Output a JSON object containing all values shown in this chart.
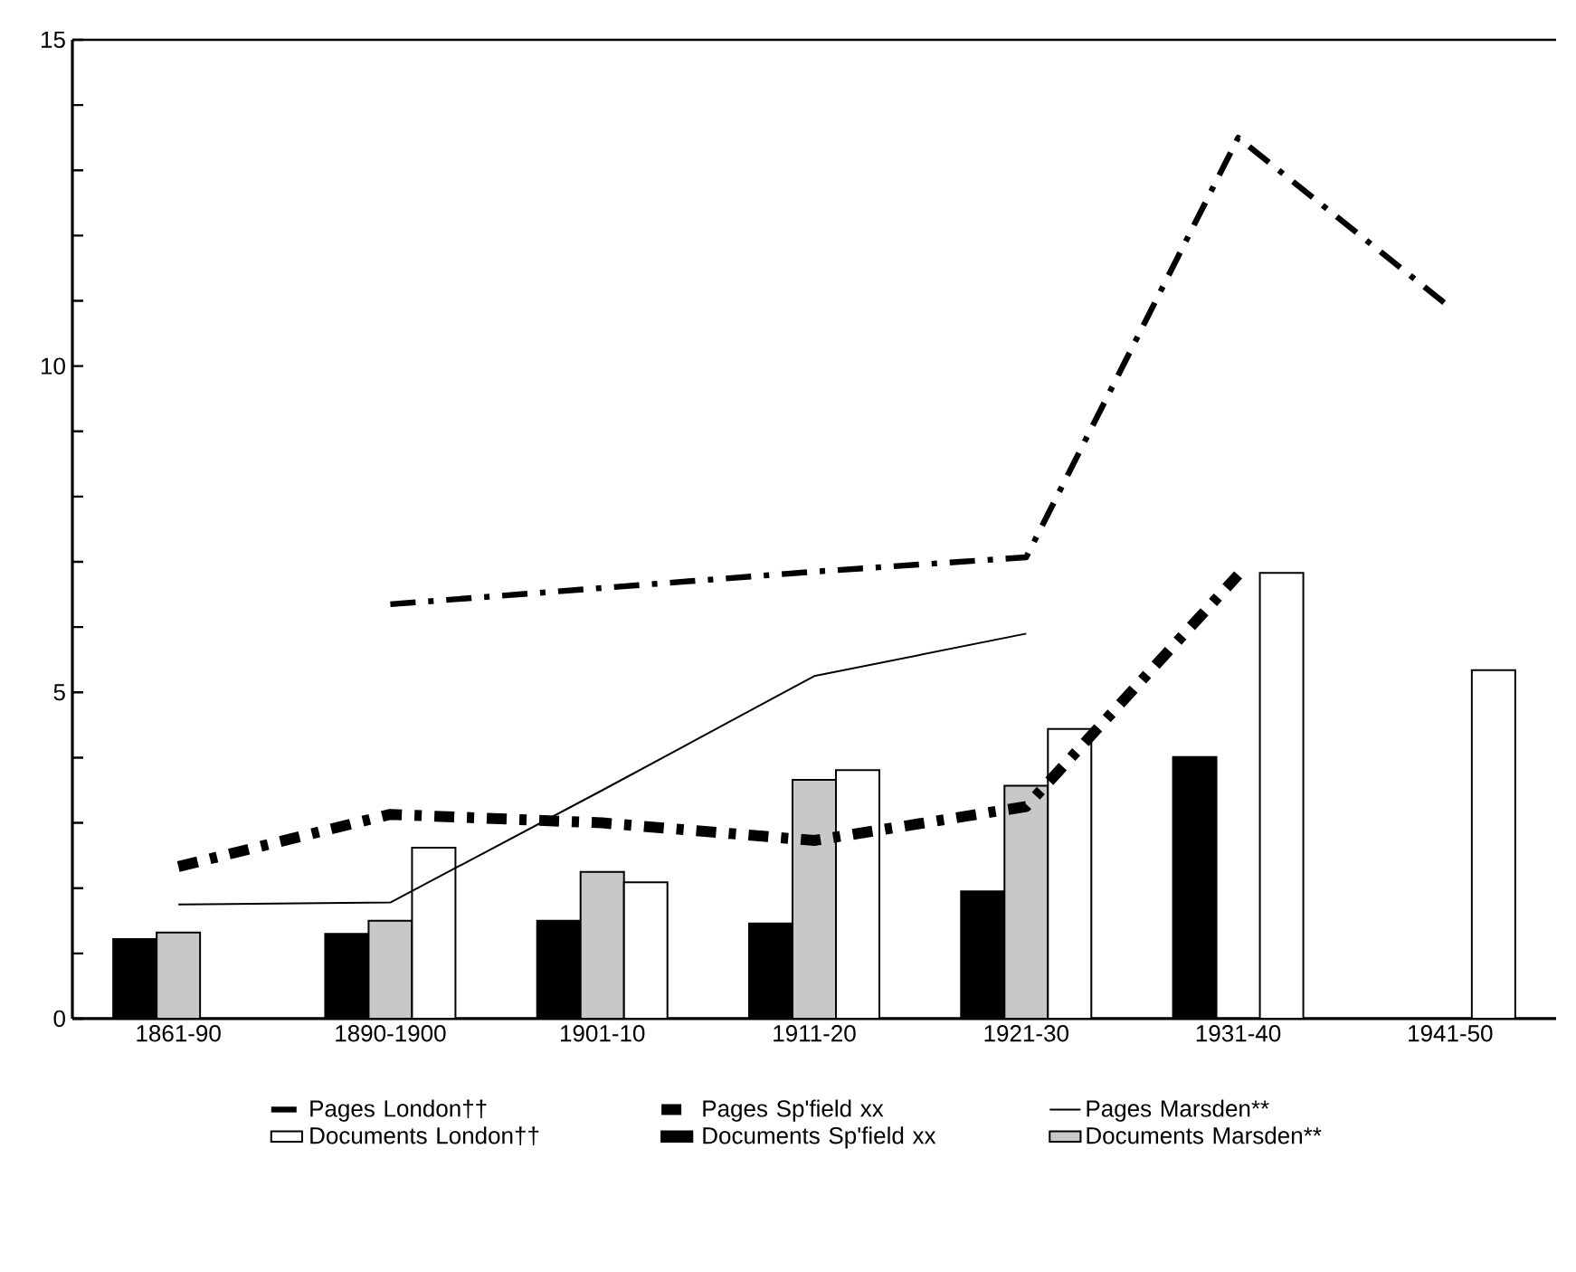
{
  "chart_data": {
    "type": "bar",
    "categories": [
      "1861-90",
      "1890-1900",
      "1901-10",
      "1911-20",
      "1921-30",
      "1931-40",
      "1941-50"
    ],
    "ylim": [
      0,
      15
    ],
    "yticks": [
      0,
      {
        "value": 1,
        "label": null
      },
      {
        "value": 2,
        "label": null
      },
      {
        "value": 3,
        "label": null
      },
      {
        "value": 4,
        "label": null
      },
      5,
      {
        "value": 6,
        "label": null
      },
      {
        "value": 7,
        "label": null
      },
      {
        "value": 8,
        "label": null
      },
      {
        "value": 9,
        "label": null
      },
      10,
      {
        "value": 11,
        "label": null
      },
      {
        "value": 12,
        "label": null
      },
      {
        "value": 13,
        "label": null
      },
      {
        "value": 14,
        "label": null
      },
      15
    ],
    "legend": "bottom",
    "grid": false,
    "marker": "none",
    "series": [
      {
        "name": "Pages London††",
        "type": "line",
        "line_style": "dashdot",
        "color": "#000000",
        "values": [
          null,
          6.35,
          6.6,
          6.85,
          7.07,
          13.5,
          10.9
        ]
      },
      {
        "name": "Pages Sp'field xx",
        "type": "line",
        "line_style": "dashdot",
        "color": "#000000",
        "values": [
          2.33,
          3.13,
          3.0,
          2.73,
          3.25,
          6.8,
          null
        ]
      },
      {
        "name": "Pages Marsden**",
        "type": "line",
        "line_style": "solid",
        "color": "#000000",
        "values": [
          1.75,
          1.78,
          3.5,
          5.25,
          5.9,
          null,
          null
        ]
      },
      {
        "name": "Documents London††",
        "color": "#ffffff",
        "values": [
          null,
          2.62,
          2.09,
          3.81,
          4.44,
          6.83,
          5.34
        ]
      },
      {
        "name": "Documents Sp'field xx",
        "color": "#000000",
        "values": [
          1.22,
          1.3,
          1.5,
          1.46,
          1.95,
          4.01,
          null
        ]
      },
      {
        "name": "Documents Marsden**",
        "color": "#c8c8c8",
        "values": [
          1.32,
          1.5,
          2.25,
          3.66,
          3.57,
          null,
          null
        ]
      }
    ]
  }
}
